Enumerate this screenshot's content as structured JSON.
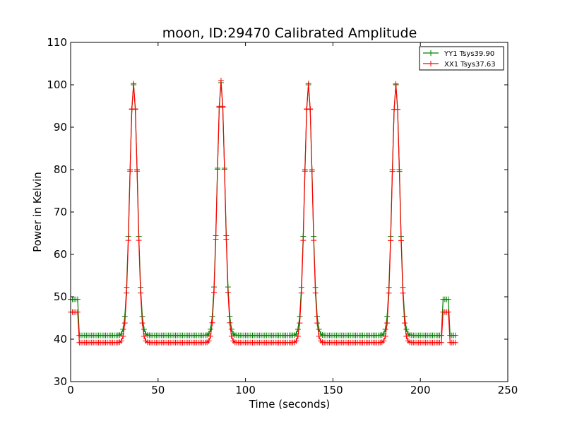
{
  "chart_data": {
    "type": "line",
    "title": "moon, ID:29470 Calibrated Amplitude",
    "xlabel": "Time (seconds)",
    "ylabel": "Power in Kelvin",
    "xlim": [
      0,
      250
    ],
    "ylim": [
      30,
      110
    ],
    "xticks": [
      "0",
      "50",
      "100",
      "150",
      "200",
      "250"
    ],
    "yticks": [
      "30",
      "40",
      "50",
      "60",
      "70",
      "80",
      "90",
      "100",
      "110"
    ],
    "legend_position": "top-right",
    "series": [
      {
        "name": "YY1 Tsys39.90",
        "color": "#008000",
        "base": 40.9,
        "calibration_level": 49.4,
        "peaks": [
          100.0,
          100.5,
          100.0,
          100.0
        ]
      },
      {
        "name": "XX1 Tsys37.63",
        "color": "#ff0000",
        "base": 39.2,
        "calibration_level": 46.4,
        "peaks": [
          100.3,
          101.0,
          100.3,
          100.2
        ]
      }
    ],
    "sample_interval_s": 1,
    "time_range": [
      0,
      220
    ],
    "peak_times": [
      36,
      86,
      136,
      186
    ],
    "calibration_windows": [
      [
        0,
        4
      ],
      [
        213,
        216
      ]
    ]
  }
}
